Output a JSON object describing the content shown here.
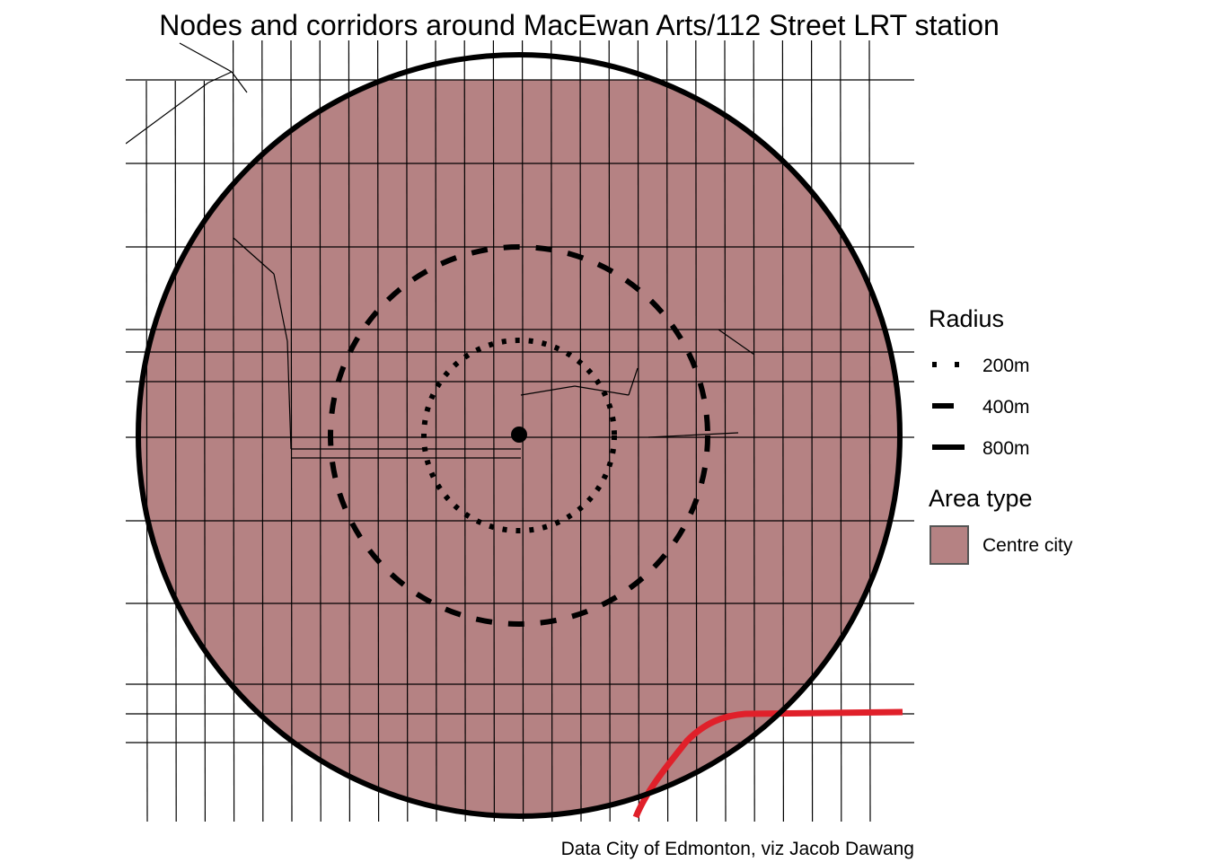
{
  "title": "Nodes and corridors around MacEwan Arts/112 Street LRT station",
  "caption": "Data City of Edmonton, viz Jacob Dawang",
  "colors": {
    "centre_city_fill": "#B58283",
    "lrt_line": "#E0202A",
    "streets": "#000000",
    "rings": "#000000"
  },
  "legend": {
    "radius": {
      "title": "Radius",
      "items": [
        {
          "label": "200m",
          "linetype": "dotted"
        },
        {
          "label": "400m",
          "linetype": "dashed"
        },
        {
          "label": "800m",
          "linetype": "solid"
        }
      ]
    },
    "area_type": {
      "title": "Area type",
      "items": [
        {
          "label": "Centre city"
        }
      ]
    }
  }
}
